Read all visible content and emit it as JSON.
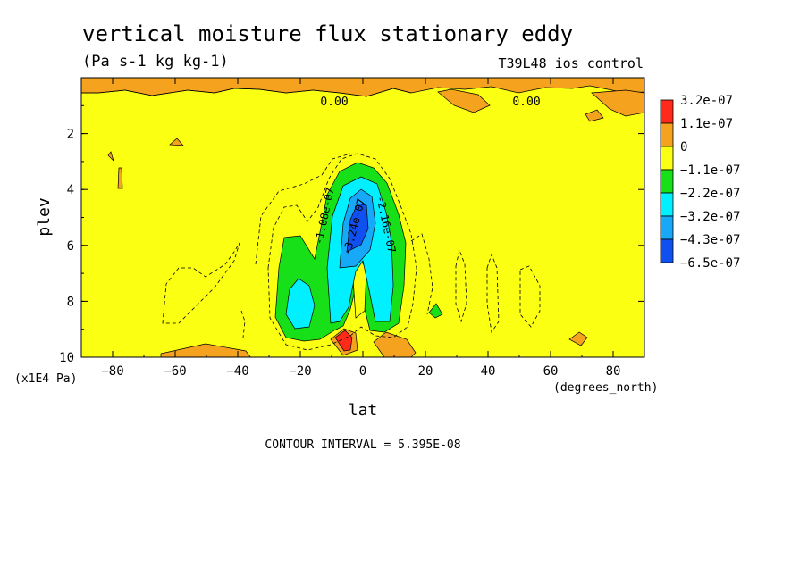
{
  "chart_data": {
    "type": "heatmap",
    "title": "vertical moisture flux stationary eddy",
    "units": "(Pa s-1 kg kg-1)",
    "dataset": "T39L48_ios_control",
    "xlabel": "lat",
    "xunits": "(degrees_north)",
    "ylabel": "plev",
    "yunits": "(x1E4 Pa)",
    "xlim": [
      -90,
      90
    ],
    "ylim": [
      10,
      0
    ],
    "xticks": [
      "-80",
      "-60",
      "-40",
      "-20",
      "0",
      "20",
      "40",
      "60",
      "80"
    ],
    "yticks": [
      "2",
      "4",
      "6",
      "8",
      "10"
    ],
    "contour_interval_text": "CONTOUR INTERVAL = 5.395E-08",
    "contour_labels": [
      "0.00",
      "0.00",
      "-1.08e-07",
      "-2.16e-07",
      "-3.24e-07"
    ],
    "legend": {
      "placement": "right",
      "levels": [
        "3.2e-07",
        "1.1e-07",
        "0",
        "−1.1e-07",
        "−2.2e-07",
        "−3.2e-07",
        "−4.3e-07",
        "−6.5e-07"
      ],
      "colors": [
        "#ff2a1a",
        "#f5a21e",
        "#fbff12",
        "#18e018",
        "#00f0ff",
        "#18a8f8",
        "#1050f0"
      ]
    }
  }
}
